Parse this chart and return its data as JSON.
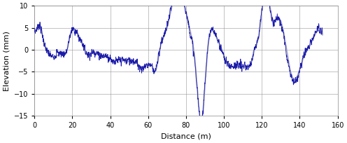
{
  "xlabel": "Distance (m)",
  "ylabel": "Elevation (mm)",
  "xlim": [
    0,
    160
  ],
  "ylim": [
    -15,
    10
  ],
  "xticks": [
    0,
    20,
    40,
    60,
    80,
    100,
    120,
    140,
    160
  ],
  "yticks": [
    -15,
    -10,
    -5,
    0,
    5,
    10
  ],
  "smooth_color": "#aaaacc",
  "noisy_color": "#1a1aaa",
  "background_color": "#ffffff",
  "grid_color": "#888888",
  "linewidth_smooth": 1.3,
  "linewidth_noisy": 0.6,
  "figsize": [
    4.96,
    2.04
  ],
  "dpi": 100
}
